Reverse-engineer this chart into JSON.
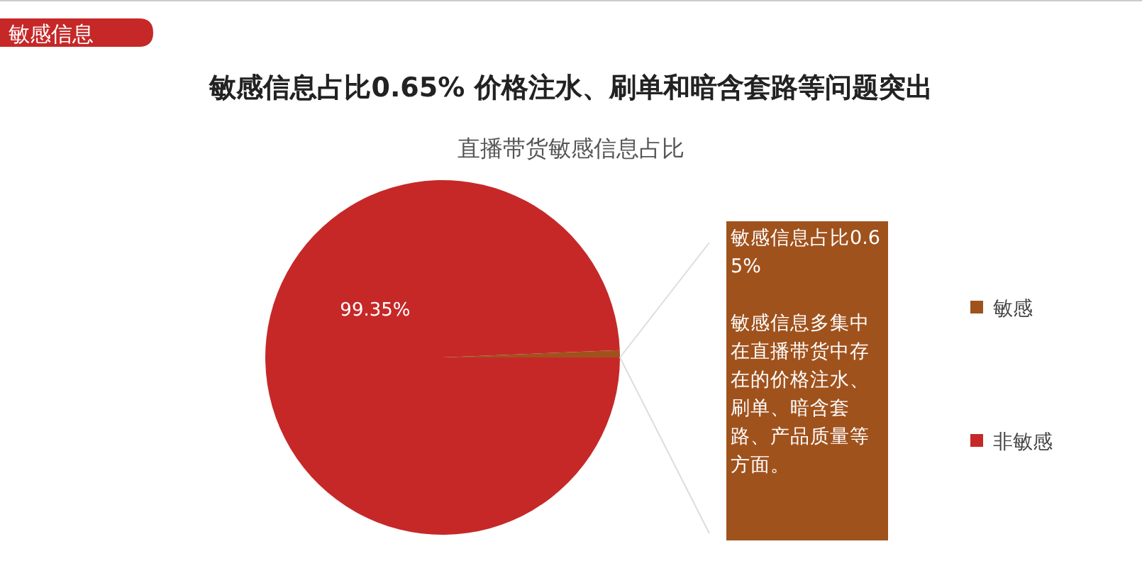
{
  "chart_data": {
    "type": "pie",
    "title": "敏感信息占比0.65%  价格注水、刷单和暗含套路等问题突出",
    "subtitle": "直播带货敏感信息占比",
    "categories": [
      "敏感",
      "非敏感"
    ],
    "values": [
      0.65,
      99.35
    ],
    "colors": [
      "#a0521d",
      "#c62828"
    ],
    "value_labels": [
      null,
      "99.35%"
    ],
    "legend": "right",
    "annotations": [
      "敏感信息",
      "敏感信息占比0.65%\n\n敏感信息多集中在直播带货中存在的价格注水、刷单、暗含套路、产品质量等方面。"
    ]
  }
}
